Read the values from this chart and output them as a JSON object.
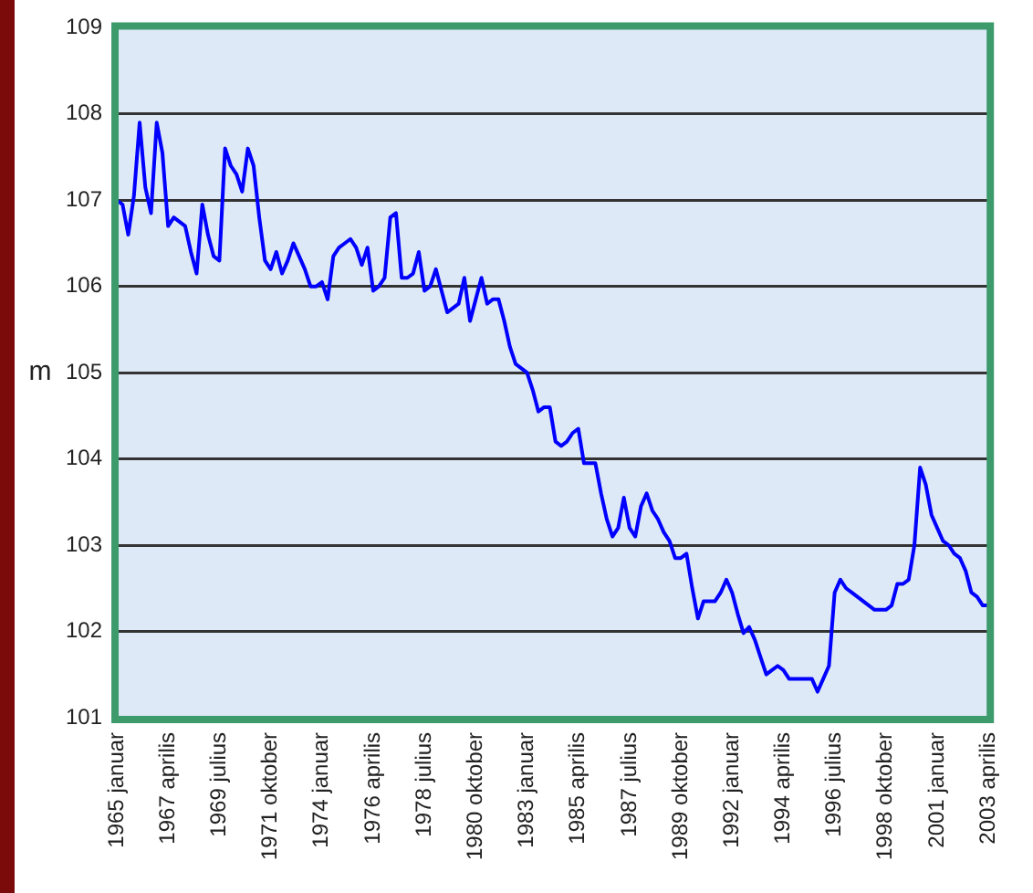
{
  "chart_data": {
    "type": "line",
    "ylabel": "m",
    "categories": [
      "1965 januar",
      null,
      null,
      null,
      null,
      null,
      null,
      null,
      null,
      "1967 aprilis",
      null,
      null,
      null,
      null,
      null,
      null,
      null,
      null,
      "1969 julius",
      null,
      null,
      null,
      null,
      null,
      null,
      null,
      null,
      "1971 oktober",
      null,
      null,
      null,
      null,
      null,
      null,
      null,
      null,
      "1974 januar",
      null,
      null,
      null,
      null,
      null,
      null,
      null,
      null,
      "1976 aprilis",
      null,
      null,
      null,
      null,
      null,
      null,
      null,
      null,
      "1978 julius",
      null,
      null,
      null,
      null,
      null,
      null,
      null,
      null,
      "1980 oktober",
      null,
      null,
      null,
      null,
      null,
      null,
      null,
      null,
      "1983 januar",
      null,
      null,
      null,
      null,
      null,
      null,
      null,
      null,
      "1985 aprilis",
      null,
      null,
      null,
      null,
      null,
      null,
      null,
      null,
      "1987 julius",
      null,
      null,
      null,
      null,
      null,
      null,
      null,
      null,
      "1989 oktober",
      null,
      null,
      null,
      null,
      null,
      null,
      null,
      null,
      "1992 januar",
      null,
      null,
      null,
      null,
      null,
      null,
      null,
      null,
      "1994 aprilis",
      null,
      null,
      null,
      null,
      null,
      null,
      null,
      null,
      "1996 julius",
      null,
      null,
      null,
      null,
      null,
      null,
      null,
      null,
      "1998 oktober",
      null,
      null,
      null,
      null,
      null,
      null,
      null,
      null,
      "2001 januar",
      null,
      null,
      null,
      null,
      null,
      null,
      null,
      null,
      "2003 aprilis"
    ],
    "series": [
      {
        "color": "#0000ff",
        "values": [
          107.0,
          106.95,
          106.6,
          107.05,
          107.9,
          107.15,
          106.85,
          107.9,
          107.55,
          106.7,
          106.8,
          106.75,
          106.7,
          106.4,
          106.15,
          106.95,
          106.6,
          106.35,
          106.3,
          107.6,
          107.4,
          107.3,
          107.1,
          107.6,
          107.4,
          106.8,
          106.3,
          106.2,
          106.4,
          106.15,
          106.3,
          106.5,
          106.35,
          106.2,
          106.0,
          106.0,
          106.05,
          105.85,
          106.35,
          106.45,
          106.5,
          106.55,
          106.45,
          106.25,
          106.45,
          105.95,
          106.0,
          106.1,
          106.8,
          106.85,
          106.1,
          106.1,
          106.15,
          106.4,
          105.95,
          106.0,
          106.2,
          105.95,
          105.7,
          105.75,
          105.8,
          106.1,
          105.6,
          105.85,
          106.1,
          105.8,
          105.85,
          105.85,
          105.6,
          105.3,
          105.1,
          105.05,
          105.0,
          104.8,
          104.55,
          104.6,
          104.6,
          104.2,
          104.15,
          104.2,
          104.3,
          104.35,
          103.95,
          103.95,
          103.95,
          103.6,
          103.3,
          103.1,
          103.2,
          103.55,
          103.2,
          103.1,
          103.45,
          103.6,
          103.4,
          103.3,
          103.15,
          103.05,
          102.85,
          102.85,
          102.9,
          102.5,
          102.15,
          102.35,
          102.35,
          102.35,
          102.45,
          102.6,
          102.45,
          102.2,
          101.98,
          102.05,
          101.9,
          101.7,
          101.5,
          101.55,
          101.6,
          101.55,
          101.45,
          101.45,
          101.45,
          101.45,
          101.45,
          101.3,
          101.45,
          101.6,
          102.45,
          102.6,
          102.5,
          102.45,
          102.4,
          102.35,
          102.3,
          102.25,
          102.25,
          102.25,
          102.3,
          102.55,
          102.55,
          102.6,
          103.0,
          103.9,
          103.7,
          103.35,
          103.2,
          103.05,
          103.0,
          102.9,
          102.85,
          102.7,
          102.45,
          102.4,
          102.3,
          102.3
        ]
      }
    ],
    "ylim": [
      101,
      109
    ],
    "yticks": [
      101,
      102,
      103,
      104,
      105,
      106,
      107,
      108,
      109
    ],
    "grid": "y",
    "marker": "none",
    "line_style": "solid"
  }
}
